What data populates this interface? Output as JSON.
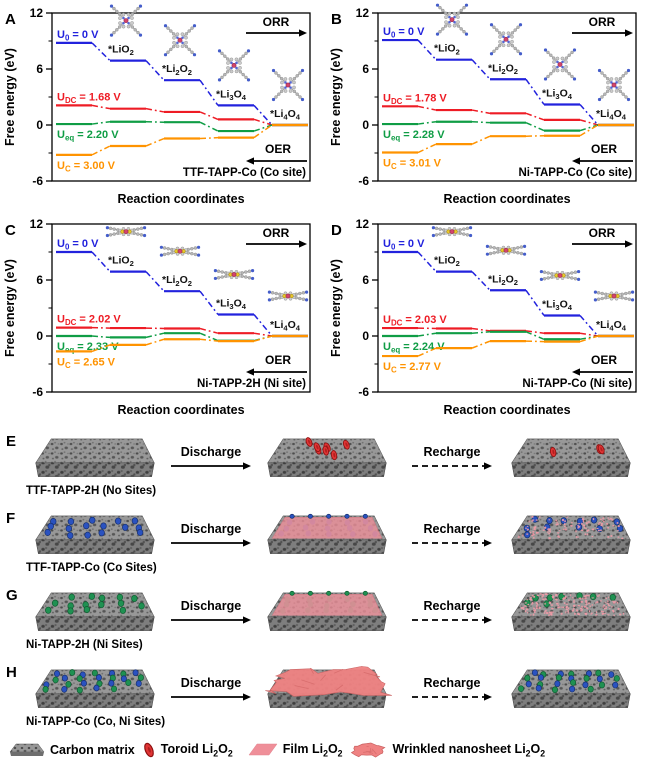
{
  "colors": {
    "blue": "#2222dd",
    "red": "#ee1c25",
    "green": "#0f9d45",
    "orange": "#ff9300",
    "axis": "#000000",
    "toroid": "#e03535",
    "toroid_dark": "#8f1111",
    "film": "#ef8f99",
    "wrinkled": "#ef8282",
    "site_blue": "#2a52c0",
    "site_green": "#1f9152",
    "slab_top": "#989898",
    "slab_front": "#7e7e7e"
  },
  "chart_data": [
    {
      "type": "line",
      "panel": "A",
      "title": "TTF-TAPP-Co (Co site)",
      "xlabel": "Reaction coordinates",
      "ylabel": "Free energy (eV)",
      "ylim": [
        -6,
        12
      ],
      "yticks": [
        12,
        6,
        0,
        -6
      ],
      "yticks_minor": [
        9,
        3,
        -3
      ],
      "orr_label": "ORR",
      "oer_label": "OER",
      "molecule": "porphyrin-x",
      "species": [
        "*LiO~2~",
        "*Li~2~O~2~",
        "*Li~3~O~4~",
        "*Li~4~O~4~"
      ],
      "series": [
        {
          "name": "U~0~ = 0 V",
          "color": "blue",
          "label_pos": "above",
          "values": [
            8.8,
            6.9,
            4.8,
            2.1,
            0
          ]
        },
        {
          "name": "U~DC~ = 1.68 V",
          "color": "red",
          "label_pos": "above",
          "values": [
            2.1,
            1.75,
            1.4,
            0.6,
            0
          ]
        },
        {
          "name": "U~eq~ = 2.20 V",
          "color": "green",
          "label_pos": "below",
          "values": [
            0.1,
            0.35,
            0.3,
            -0.65,
            0
          ]
        },
        {
          "name": "U~C~ = 3.00 V",
          "color": "orange",
          "label_pos": "below",
          "values": [
            -3.2,
            -2.25,
            -1.45,
            -1.35,
            0
          ]
        }
      ]
    },
    {
      "type": "line",
      "panel": "B",
      "title": "Ni-TAPP-Co (Co site)",
      "xlabel": "Reaction coordinates",
      "ylabel": "Free energy (eV)",
      "ylim": [
        -6,
        12
      ],
      "yticks": [
        12,
        6,
        0,
        -6
      ],
      "yticks_minor": [
        9,
        3,
        -3
      ],
      "orr_label": "ORR",
      "oer_label": "OER",
      "molecule": "porphyrin-x",
      "species": [
        "*LiO~2~",
        "*Li~2~O~2~",
        "*Li~3~O~4~",
        "*Li~4~O~4~"
      ],
      "series": [
        {
          "name": "U~0~ = 0 V",
          "color": "blue",
          "label_pos": "above",
          "values": [
            9.1,
            7.0,
            4.9,
            2.2,
            0
          ]
        },
        {
          "name": "U~DC~ = 1.78 V",
          "color": "red",
          "label_pos": "above",
          "values": [
            2.0,
            1.6,
            1.25,
            0.55,
            0
          ]
        },
        {
          "name": "U~eq~ = 2.28 V",
          "color": "green",
          "label_pos": "below",
          "values": [
            0.1,
            0.35,
            0.25,
            -0.6,
            0
          ]
        },
        {
          "name": "U~C~ = 3.01 V",
          "color": "orange",
          "label_pos": "below",
          "values": [
            -2.95,
            -2.05,
            -1.2,
            -1.15,
            0
          ]
        }
      ]
    },
    {
      "type": "line",
      "panel": "C",
      "title": "Ni-TAPP-2H (Ni site)",
      "xlabel": "Reaction coordinates",
      "ylabel": "Free energy (eV)",
      "ylim": [
        -6,
        12
      ],
      "yticks": [
        12,
        6,
        0,
        -6
      ],
      "yticks_minor": [
        9,
        3,
        -3
      ],
      "orr_label": "ORR",
      "oer_label": "OER",
      "molecule": "porphyrin-flat",
      "species": [
        "*LiO~2~",
        "*Li~2~O~2~",
        "*Li~3~O~4~",
        "*Li~4~O~4~"
      ],
      "series": [
        {
          "name": "U~0~ = 0 V",
          "color": "blue",
          "label_pos": "above",
          "values": [
            9.0,
            6.9,
            4.8,
            2.3,
            0
          ]
        },
        {
          "name": "U~DC~ = 2.02 V",
          "color": "red",
          "label_pos": "above",
          "values": [
            0.9,
            0.85,
            0.8,
            0.3,
            0
          ]
        },
        {
          "name": "U~eq~ = 2.33 V",
          "color": "green",
          "label_pos": "below",
          "values": [
            0.0,
            -0.15,
            0.3,
            -0.5,
            0
          ]
        },
        {
          "name": "U~C~ = 2.65 V",
          "color": "orange",
          "label_pos": "below",
          "values": [
            -1.65,
            -0.95,
            -0.35,
            -0.55,
            0
          ]
        }
      ]
    },
    {
      "type": "line",
      "panel": "D",
      "title": "Ni-TAPP-Co (Ni site)",
      "xlabel": "Reaction coordinates",
      "ylabel": "Free energy (eV)",
      "ylim": [
        -6,
        12
      ],
      "yticks": [
        12,
        6,
        0,
        -6
      ],
      "yticks_minor": [
        9,
        3,
        -3
      ],
      "orr_label": "ORR",
      "oer_label": "OER",
      "molecule": "porphyrin-flat",
      "species": [
        "*LiO~2~",
        "*Li~2~O~2~",
        "*Li~3~O~4~",
        "*Li~4~O~4~"
      ],
      "series": [
        {
          "name": "U~0~ = 0 V",
          "color": "blue",
          "label_pos": "above",
          "values": [
            9.0,
            6.9,
            4.9,
            2.2,
            0
          ]
        },
        {
          "name": "U~DC~ = 2.03 V",
          "color": "red",
          "label_pos": "above",
          "values": [
            0.85,
            0.8,
            0.55,
            0.3,
            0
          ]
        },
        {
          "name": "U~eq~ = 2.24 V",
          "color": "green",
          "label_pos": "below",
          "values": [
            0.0,
            0.3,
            0.45,
            -0.35,
            0
          ]
        },
        {
          "name": "U~C~ = 2.77 V",
          "color": "orange",
          "label_pos": "below",
          "values": [
            -2.15,
            -1.3,
            -0.55,
            -0.6,
            0
          ]
        }
      ]
    }
  ],
  "scheme_rows": [
    {
      "letter": "E",
      "name": "TTF-TAPP-2H (No Sites)",
      "discharge_label": "Discharge",
      "recharge_label": "Recharge",
      "slabs": [
        {
          "deco": "plain"
        },
        {
          "deco": "toroids",
          "count": 7
        },
        {
          "deco": "toroids",
          "count": 3
        }
      ]
    },
    {
      "letter": "F",
      "name": "TTF-TAPP-Co (Co Sites)",
      "discharge_label": "Discharge",
      "recharge_label": "Recharge",
      "slabs": [
        {
          "deco": "dots",
          "colors": [
            "blue"
          ],
          "count": 17
        },
        {
          "deco": "film",
          "under": "blue"
        },
        {
          "deco": "residue",
          "colors": [
            "blue"
          ],
          "dots": 12,
          "specks": 110
        }
      ]
    },
    {
      "letter": "G",
      "name": "Ni-TAPP-2H (Ni Sites)",
      "discharge_label": "Discharge",
      "recharge_label": "Recharge",
      "slabs": [
        {
          "deco": "dots",
          "colors": [
            "green"
          ],
          "count": 15
        },
        {
          "deco": "film",
          "under": "green"
        },
        {
          "deco": "residue",
          "colors": [
            "green"
          ],
          "dots": 8,
          "specks": 160
        }
      ]
    },
    {
      "letter": "H",
      "name": "Ni-TAPP-Co (Co, Ni Sites)",
      "discharge_label": "Discharge",
      "recharge_label": "Recharge",
      "slabs": [
        {
          "deco": "dots",
          "colors": [
            "blue",
            "green"
          ],
          "count": 26
        },
        {
          "deco": "wrinkled"
        },
        {
          "deco": "dots",
          "colors": [
            "blue",
            "green"
          ],
          "count": 26
        }
      ]
    }
  ],
  "legend": {
    "items": [
      {
        "type": "carbon",
        "label": "Carbon matrix"
      },
      {
        "type": "toroid",
        "label": "Toroid Li~2~O~2~"
      },
      {
        "type": "film",
        "label": "Film Li~2~O~2~"
      },
      {
        "type": "wrinkled",
        "label": "Wrinkled nanosheet  Li~2~O~2~"
      }
    ]
  }
}
